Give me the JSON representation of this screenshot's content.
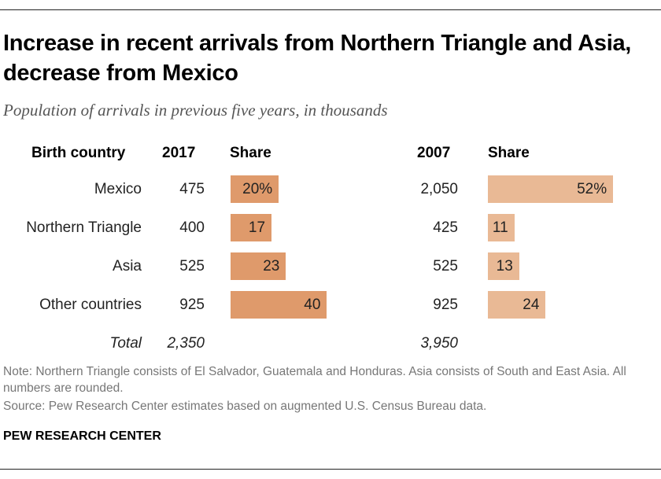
{
  "title": "Increase in recent arrivals from Northern Triangle and Asia, decrease from Mexico",
  "subtitle": "Population of arrivals in previous five years, in thousands",
  "note": "Note: Northern Triangle consists of El Salvador, Guatemala and Honduras. Asia consists of South and East Asia. All numbers are rounded.",
  "source": "Source: Pew Research Center estimates based on augmented U.S. Census Bureau data.",
  "brand": "PEW RESEARCH CENTER",
  "colors": {
    "share_2017": "#DF9A6B",
    "share_2007": "#E9B995"
  },
  "chart_data": {
    "type": "table",
    "headers": {
      "country": "Birth country",
      "y2017": "2017",
      "share2017": "Share",
      "y2007": "2007",
      "share2007": "Share"
    },
    "rows": [
      {
        "country": "Mexico",
        "pop2017": "475",
        "share2017": 20,
        "share2017_label": "20%",
        "pop2007": "2,050",
        "share2007": 52,
        "share2007_label": "52%"
      },
      {
        "country": "Northern Triangle",
        "pop2017": "400",
        "share2017": 17,
        "share2017_label": "17",
        "pop2007": "425",
        "share2007": 11,
        "share2007_label": "11"
      },
      {
        "country": "Asia",
        "pop2017": "525",
        "share2017": 23,
        "share2017_label": "23",
        "pop2007": "525",
        "share2007": 13,
        "share2007_label": "13"
      },
      {
        "country": "Other countries",
        "pop2017": "925",
        "share2017": 40,
        "share2017_label": "40",
        "pop2007": "925",
        "share2007": 24,
        "share2007_label": "24"
      }
    ],
    "total": {
      "label": "Total",
      "pop2017": "2,350",
      "pop2007": "3,950"
    }
  }
}
